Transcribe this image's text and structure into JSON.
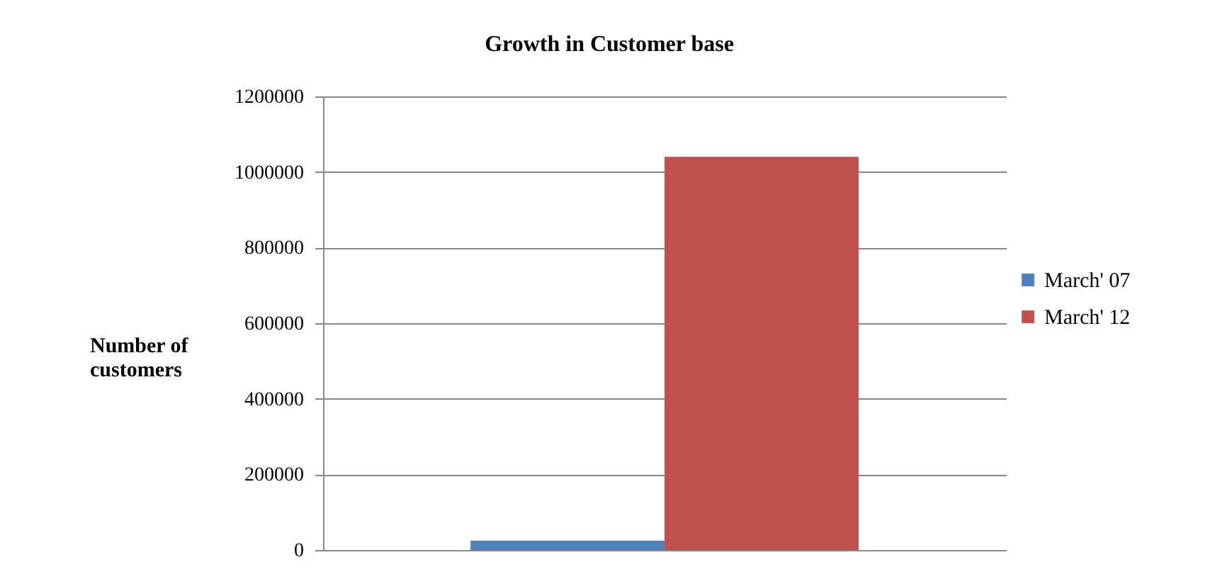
{
  "chart_data": {
    "type": "bar",
    "title": "Growth  in Customer base",
    "ylabel": "Number of customers",
    "categories": [
      null
    ],
    "series": [
      {
        "name": "March' 07",
        "color": "#4f81bd",
        "values": [
          25000
        ]
      },
      {
        "name": "March' 12",
        "color": "#c0504d",
        "values": [
          1040000
        ]
      }
    ],
    "ylim": [
      0,
      1200000
    ],
    "yticks": [
      0,
      200000,
      400000,
      600000,
      800000,
      1000000,
      1200000
    ],
    "grid": "y",
    "legend": "right"
  }
}
